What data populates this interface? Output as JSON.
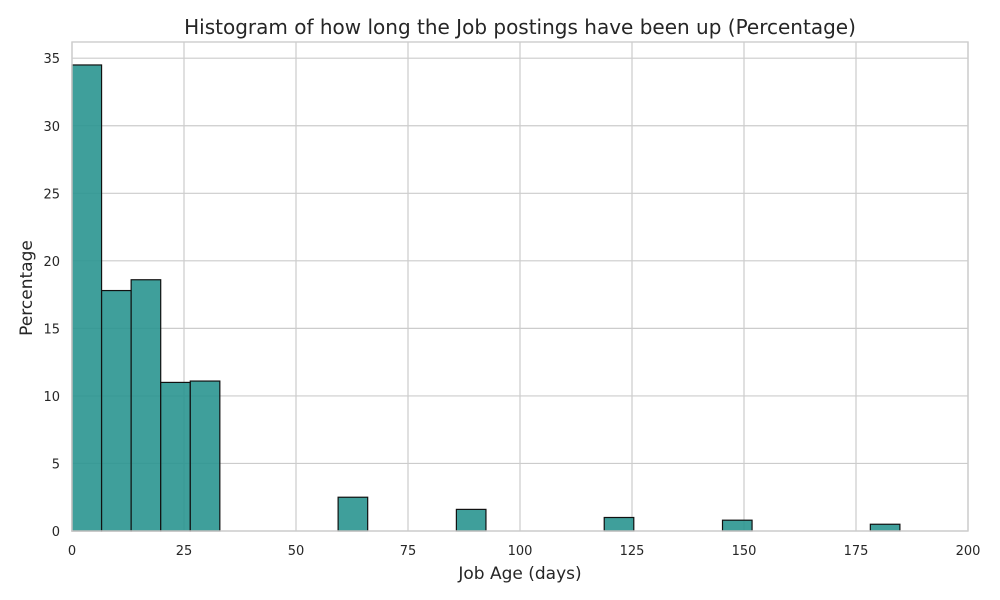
{
  "chart_data": {
    "type": "bar",
    "title": "Histogram of how long the Job postings have been up (Percentage)",
    "xlabel": "Job Age (days)",
    "ylabel": "Percentage",
    "xlim": [
      0,
      200
    ],
    "ylim": [
      0,
      36.2
    ],
    "x_ticks": [
      0,
      25,
      50,
      75,
      100,
      125,
      150,
      175,
      200
    ],
    "y_ticks": [
      0,
      5,
      10,
      15,
      20,
      25,
      30,
      35
    ],
    "bin_width": 6.6,
    "bins": [
      {
        "start": 0,
        "end": 6.6,
        "value": 34.5
      },
      {
        "start": 6.6,
        "end": 13.2,
        "value": 17.8
      },
      {
        "start": 13.2,
        "end": 19.8,
        "value": 18.6
      },
      {
        "start": 19.8,
        "end": 26.4,
        "value": 11.0
      },
      {
        "start": 26.4,
        "end": 33.0,
        "value": 11.1
      },
      {
        "start": 59.4,
        "end": 66.0,
        "value": 2.5
      },
      {
        "start": 85.8,
        "end": 92.4,
        "value": 1.6
      },
      {
        "start": 118.8,
        "end": 125.4,
        "value": 1.0
      },
      {
        "start": 145.2,
        "end": 151.8,
        "value": 0.8
      },
      {
        "start": 178.2,
        "end": 184.8,
        "value": 0.5
      }
    ],
    "grid": true,
    "bar_color": "#2a9590",
    "edge_color": "#111111"
  }
}
